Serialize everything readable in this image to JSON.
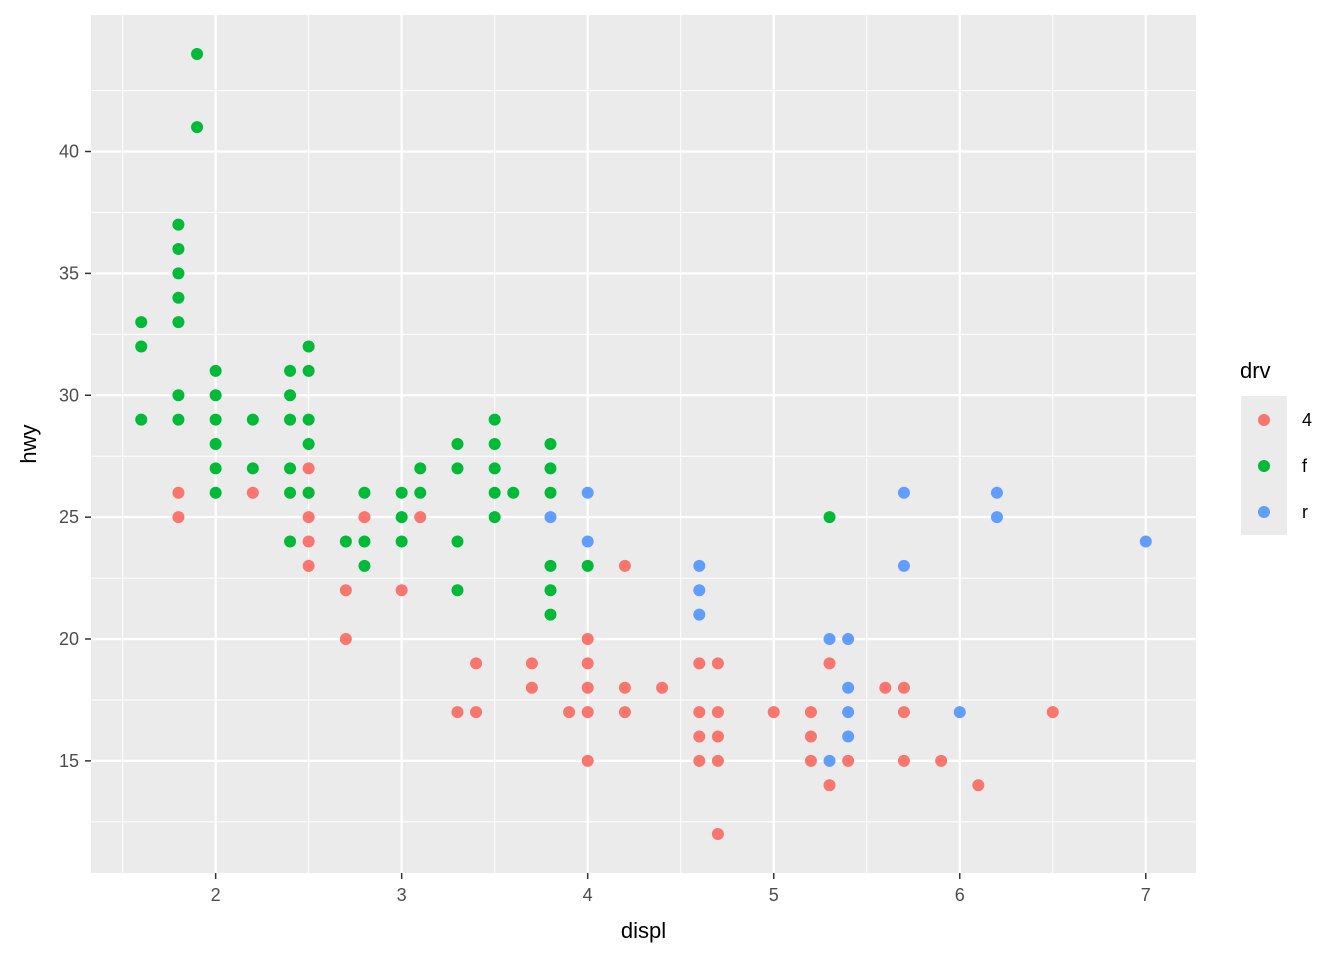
{
  "chart_data": {
    "type": "scatter",
    "title": "",
    "xlabel": "displ",
    "ylabel": "hwy",
    "xlim": [
      1.33,
      7.27
    ],
    "ylim": [
      10.4,
      45.6
    ],
    "x_ticks": [
      2,
      3,
      4,
      5,
      6,
      7
    ],
    "y_ticks": [
      15,
      20,
      25,
      30,
      35,
      40
    ],
    "grid": true,
    "panel_background": "#ebebeb",
    "legend": {
      "title": "drv",
      "placement": "right",
      "entries": [
        {
          "label": "4",
          "color": "#F8766D"
        },
        {
          "label": "f",
          "color": "#00BA38"
        },
        {
          "label": "r",
          "color": "#619CFF"
        }
      ]
    },
    "series": [
      {
        "name": "4",
        "color": "#F8766D",
        "points": [
          [
            1.8,
            26
          ],
          [
            1.8,
            25
          ],
          [
            2.2,
            26
          ],
          [
            2.5,
            27
          ],
          [
            2.5,
            26
          ],
          [
            2.5,
            25
          ],
          [
            2.5,
            24
          ],
          [
            2.5,
            23
          ],
          [
            2.7,
            22
          ],
          [
            2.7,
            20
          ],
          [
            2.8,
            25
          ],
          [
            3.0,
            22
          ],
          [
            3.1,
            25
          ],
          [
            3.3,
            17
          ],
          [
            3.4,
            19
          ],
          [
            3.4,
            17
          ],
          [
            3.7,
            19
          ],
          [
            3.7,
            18
          ],
          [
            3.9,
            17
          ],
          [
            4.0,
            20
          ],
          [
            4.0,
            19
          ],
          [
            4.0,
            18
          ],
          [
            4.0,
            17
          ],
          [
            4.0,
            15
          ],
          [
            4.2,
            23
          ],
          [
            4.2,
            18
          ],
          [
            4.2,
            17
          ],
          [
            4.4,
            18
          ],
          [
            4.6,
            19
          ],
          [
            4.6,
            17
          ],
          [
            4.6,
            16
          ],
          [
            4.6,
            15
          ],
          [
            4.7,
            19
          ],
          [
            4.7,
            17
          ],
          [
            4.7,
            16
          ],
          [
            4.7,
            15
          ],
          [
            4.7,
            12
          ],
          [
            5.0,
            17
          ],
          [
            5.2,
            17
          ],
          [
            5.2,
            16
          ],
          [
            5.2,
            15
          ],
          [
            5.3,
            19
          ],
          [
            5.3,
            14
          ],
          [
            5.4,
            15
          ],
          [
            5.6,
            18
          ],
          [
            5.7,
            18
          ],
          [
            5.7,
            17
          ],
          [
            5.7,
            15
          ],
          [
            5.9,
            15
          ],
          [
            6.1,
            14
          ],
          [
            6.5,
            17
          ]
        ]
      },
      {
        "name": "f",
        "color": "#00BA38",
        "points": [
          [
            1.6,
            33
          ],
          [
            1.6,
            32
          ],
          [
            1.6,
            29
          ],
          [
            1.8,
            37
          ],
          [
            1.8,
            36
          ],
          [
            1.8,
            35
          ],
          [
            1.8,
            34
          ],
          [
            1.8,
            33
          ],
          [
            1.8,
            30
          ],
          [
            1.8,
            29
          ],
          [
            1.9,
            44
          ],
          [
            1.9,
            41
          ],
          [
            2.0,
            31
          ],
          [
            2.0,
            30
          ],
          [
            2.0,
            29
          ],
          [
            2.0,
            28
          ],
          [
            2.0,
            27
          ],
          [
            2.0,
            26
          ],
          [
            2.2,
            29
          ],
          [
            2.2,
            27
          ],
          [
            2.4,
            31
          ],
          [
            2.4,
            30
          ],
          [
            2.4,
            29
          ],
          [
            2.4,
            27
          ],
          [
            2.4,
            26
          ],
          [
            2.4,
            24
          ],
          [
            2.5,
            32
          ],
          [
            2.5,
            31
          ],
          [
            2.5,
            29
          ],
          [
            2.5,
            28
          ],
          [
            2.5,
            26
          ],
          [
            2.7,
            24
          ],
          [
            2.8,
            26
          ],
          [
            2.8,
            24
          ],
          [
            2.8,
            23
          ],
          [
            3.0,
            26
          ],
          [
            3.0,
            25
          ],
          [
            3.0,
            24
          ],
          [
            3.1,
            27
          ],
          [
            3.1,
            26
          ],
          [
            3.3,
            28
          ],
          [
            3.3,
            27
          ],
          [
            3.3,
            24
          ],
          [
            3.3,
            22
          ],
          [
            3.5,
            29
          ],
          [
            3.5,
            28
          ],
          [
            3.5,
            27
          ],
          [
            3.5,
            26
          ],
          [
            3.5,
            25
          ],
          [
            3.6,
            26
          ],
          [
            3.8,
            28
          ],
          [
            3.8,
            27
          ],
          [
            3.8,
            26
          ],
          [
            3.8,
            23
          ],
          [
            3.8,
            22
          ],
          [
            3.8,
            21
          ],
          [
            4.0,
            23
          ],
          [
            5.3,
            25
          ]
        ]
      },
      {
        "name": "r",
        "color": "#619CFF",
        "points": [
          [
            3.8,
            25
          ],
          [
            4.0,
            26
          ],
          [
            4.0,
            24
          ],
          [
            4.6,
            23
          ],
          [
            4.6,
            22
          ],
          [
            4.6,
            21
          ],
          [
            5.3,
            20
          ],
          [
            5.3,
            15
          ],
          [
            5.4,
            20
          ],
          [
            5.4,
            18
          ],
          [
            5.4,
            17
          ],
          [
            5.4,
            16
          ],
          [
            5.7,
            26
          ],
          [
            5.7,
            23
          ],
          [
            6.0,
            17
          ],
          [
            6.2,
            26
          ],
          [
            6.2,
            25
          ],
          [
            7.0,
            24
          ]
        ]
      }
    ]
  }
}
